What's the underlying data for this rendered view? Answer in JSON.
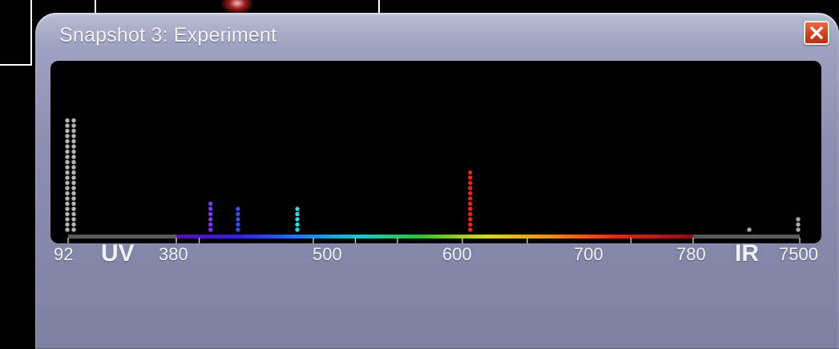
{
  "dialog": {
    "title": "Snapshot 3: Experiment",
    "close_icon": "close-x-icon"
  },
  "axis": {
    "tick_labels": [
      {
        "key": "t92",
        "text": "92"
      },
      {
        "key": "uv",
        "text": "UV"
      },
      {
        "key": "t380",
        "text": "380"
      },
      {
        "key": "t500",
        "text": "500"
      },
      {
        "key": "t600",
        "text": "600"
      },
      {
        "key": "t700",
        "text": "700"
      },
      {
        "key": "t780",
        "text": "780"
      },
      {
        "key": "ir",
        "text": "IR"
      },
      {
        "key": "t7500",
        "text": "7500"
      }
    ]
  },
  "chart_data": {
    "type": "scatter",
    "xlabel": "",
    "ylabel": "",
    "x_tick_labels": [
      "92",
      "380",
      "500",
      "600",
      "700",
      "780",
      "7500"
    ],
    "regions": [
      "UV",
      "IR"
    ],
    "series": [
      {
        "wavelength": 92,
        "count": 22,
        "color": "#b4b4b4"
      },
      {
        "wavelength": 92,
        "count": 22,
        "color": "#b4b4b4"
      },
      {
        "wavelength": 410,
        "count": 6,
        "color": "#7a3cf0"
      },
      {
        "wavelength": 434,
        "count": 5,
        "color": "#3550f5"
      },
      {
        "wavelength": 486,
        "count": 5,
        "color": "#35d6dc"
      },
      {
        "wavelength": 656,
        "count": 12,
        "color": "#e8261c"
      },
      {
        "wavelength": 4050,
        "count": 1,
        "color": "#a8a8a8"
      },
      {
        "wavelength": 7500,
        "count": 3,
        "color": "#a8a8a8"
      }
    ]
  }
}
